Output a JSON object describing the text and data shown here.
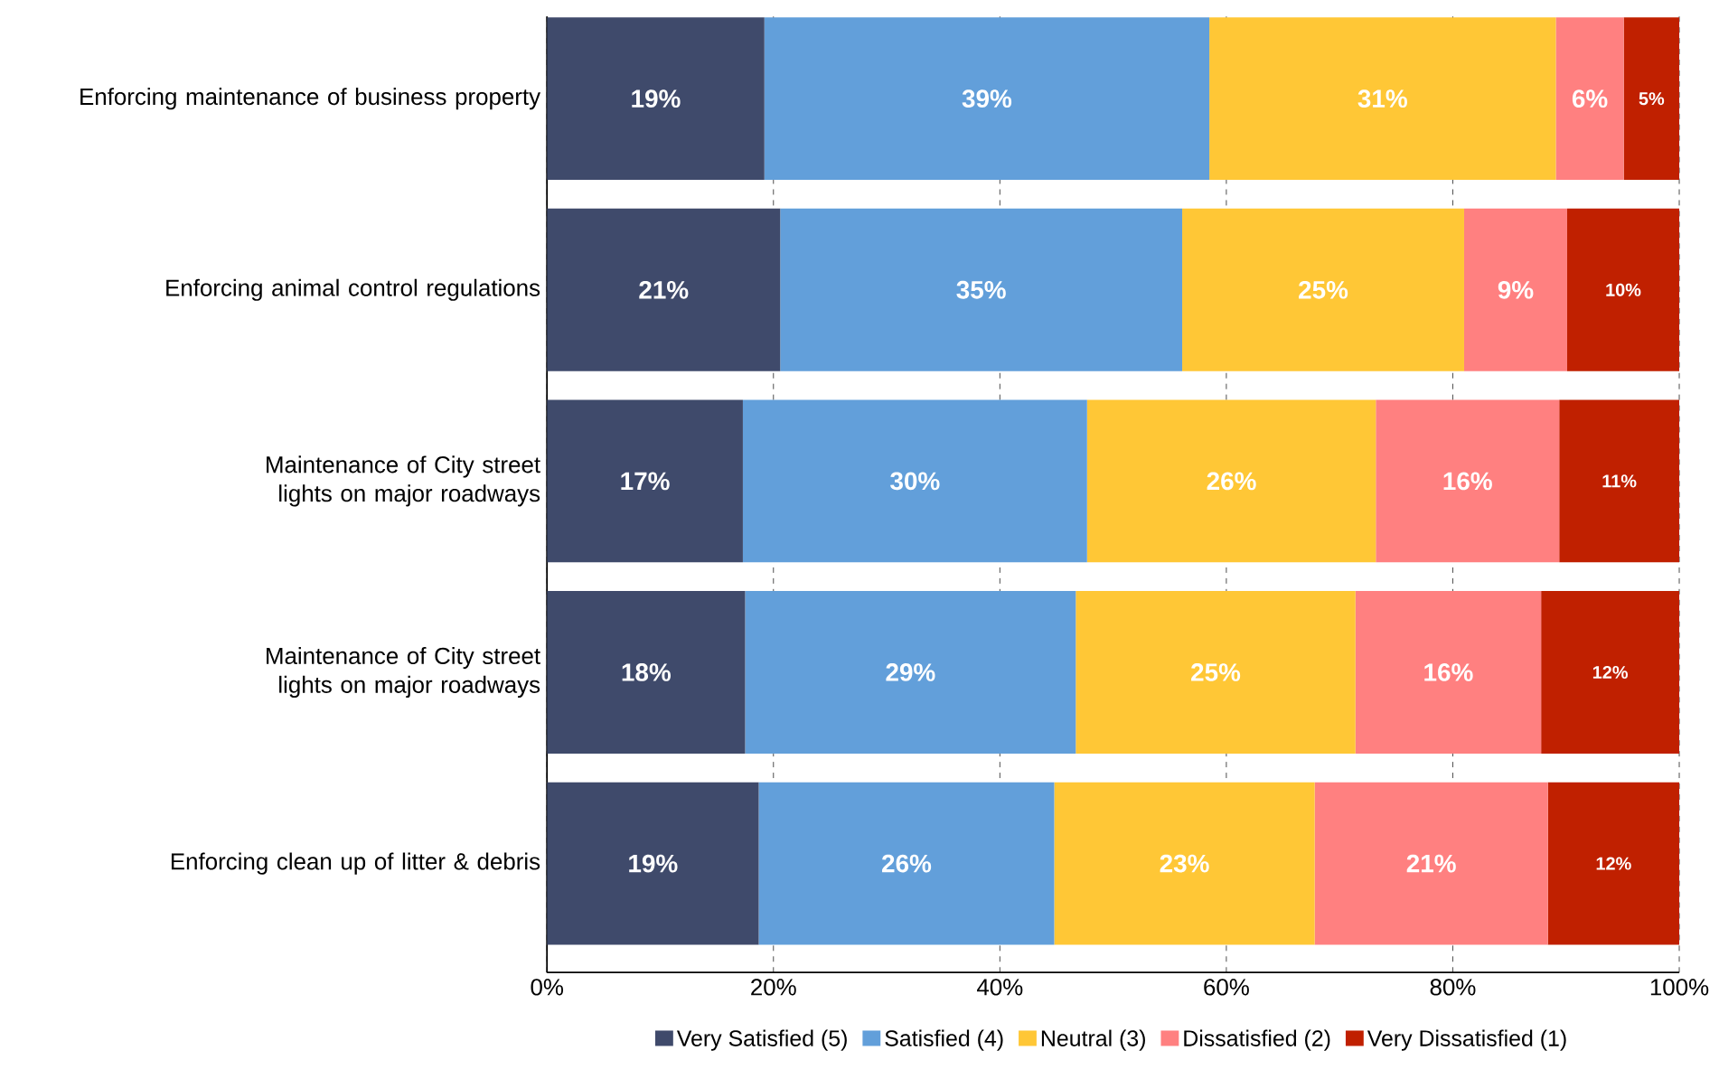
{
  "chart_data": {
    "type": "bar",
    "orientation": "horizontal",
    "stacked": true,
    "categories": [
      "Enforcing maintenance of business property",
      "Enforcing animal control regulations",
      "Maintenance of City street lights on major roadways",
      "Maintenance of City street lights on major roadways",
      "Enforcing clean up of litter & debris"
    ],
    "series": [
      {
        "name": "Very Satisfied (5)",
        "color": "#3f4a6b",
        "values": [
          19.2,
          20.6,
          17.3,
          17.5,
          18.7
        ],
        "value_labels": [
          "19%",
          "21%",
          "17%",
          "18%",
          "19%"
        ]
      },
      {
        "name": "Satisfied (4)",
        "color": "#629fda",
        "values": [
          39.3,
          35.5,
          30.4,
          29.2,
          26.1
        ],
        "value_labels": [
          "39%",
          "35%",
          "30%",
          "29%",
          "26%"
        ]
      },
      {
        "name": "Neutral (3)",
        "color": "#ffc736",
        "values": [
          30.6,
          24.9,
          25.5,
          24.7,
          23.0
        ],
        "value_labels": [
          "31%",
          "25%",
          "26%",
          "25%",
          "23%"
        ]
      },
      {
        "name": "Dissatisfied (2)",
        "color": "#ff8080",
        "values": [
          6.0,
          9.1,
          16.2,
          16.4,
          20.6
        ],
        "value_labels": [
          "6%",
          "9%",
          "16%",
          "16%",
          "21%"
        ]
      },
      {
        "name": "Very Dissatisfied (1)",
        "color": "#c02000",
        "values": [
          4.9,
          9.9,
          10.6,
          12.2,
          11.6
        ],
        "value_labels": [
          "5%",
          "10%",
          "11%",
          "12%",
          "12%"
        ]
      }
    ],
    "xlim": [
      0,
      100
    ],
    "xticks": [
      {
        "value": 0,
        "label": "0%"
      },
      {
        "value": 20,
        "label": "20%"
      },
      {
        "value": 40,
        "label": "40%"
      },
      {
        "value": 60,
        "label": "60%"
      },
      {
        "value": 80,
        "label": "80%"
      },
      {
        "value": 100,
        "label": "100%"
      }
    ],
    "grid": "x",
    "legend": "bottom"
  }
}
